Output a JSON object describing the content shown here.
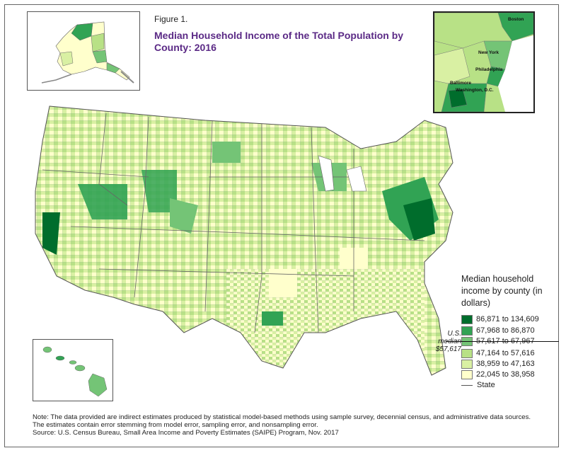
{
  "figure": {
    "label": "Figure 1.",
    "title": "Median Household Income of the Total Population by County: 2016"
  },
  "legend": {
    "title": "Median household income by county (in dollars)",
    "classes": [
      {
        "range": "86,871 to 134,609",
        "color": "#006d2c"
      },
      {
        "range": "67,968 to 86,870",
        "color": "#31a354"
      },
      {
        "range": "57,617 to 67,967",
        "color": "#74c476"
      },
      {
        "range": "47,164 to 57,616",
        "color": "#b8e186"
      },
      {
        "range": "38,959 to 47,163",
        "color": "#d9f0a3"
      },
      {
        "range": "22,045 to 38,958",
        "color": "#ffffcc"
      }
    ],
    "median_label": "U.S. median $57,617",
    "state_key": "State"
  },
  "insets": {
    "northeast_cities": [
      "Boston",
      "New York",
      "Philadelphia",
      "Baltimore",
      "Washington, D.C."
    ]
  },
  "note": "Note: The data provided are indirect estimates produced by statistical model-based methods using sample survey, decennial census, and administrative data sources. The estimates contain error stemming from model error, sampling error, and nonsampling error.",
  "source": "Source: U.S. Census Bureau, Small Area Income and Poverty Estimates (SAIPE) Program, Nov. 2017"
}
